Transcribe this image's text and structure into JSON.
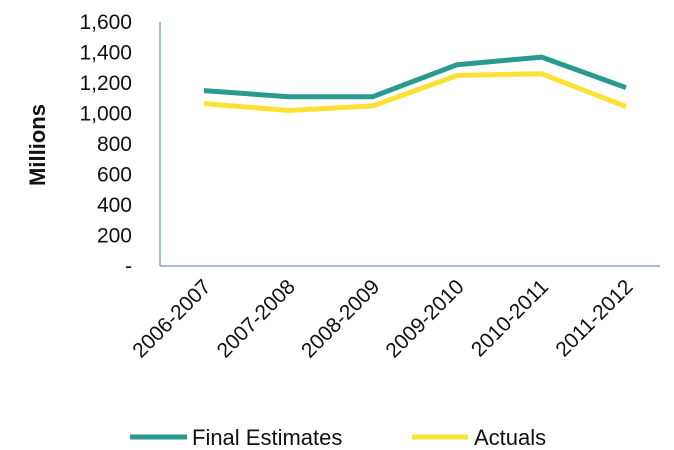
{
  "chart_data": {
    "type": "line",
    "title": "",
    "xlabel": "",
    "ylabel": "Millions",
    "categories": [
      "2006-2007",
      "2007-2008",
      "2008-2009",
      "2009-2010",
      "2010-2011",
      "2011-2012"
    ],
    "series": [
      {
        "name": "Final Estimates",
        "color": "#2a9a8f",
        "values": [
          1150,
          1110,
          1110,
          1320,
          1370,
          1170
        ]
      },
      {
        "name": "Actuals",
        "color": "#ffe135",
        "values": [
          1065,
          1020,
          1050,
          1250,
          1260,
          1045
        ]
      }
    ],
    "ylim": [
      0,
      1600
    ],
    "yticks": [
      {
        "value": 0,
        "label": "-"
      },
      {
        "value": 200,
        "label": "200"
      },
      {
        "value": 400,
        "label": "400"
      },
      {
        "value": 600,
        "label": "600"
      },
      {
        "value": 800,
        "label": "800"
      },
      {
        "value": 1000,
        "label": "1,000"
      },
      {
        "value": 1200,
        "label": "1,200"
      },
      {
        "value": 1400,
        "label": "1,400"
      },
      {
        "value": 1600,
        "label": "1,600"
      }
    ],
    "grid": false,
    "legend": "bottom",
    "axis_color": "#8aa6c1"
  }
}
